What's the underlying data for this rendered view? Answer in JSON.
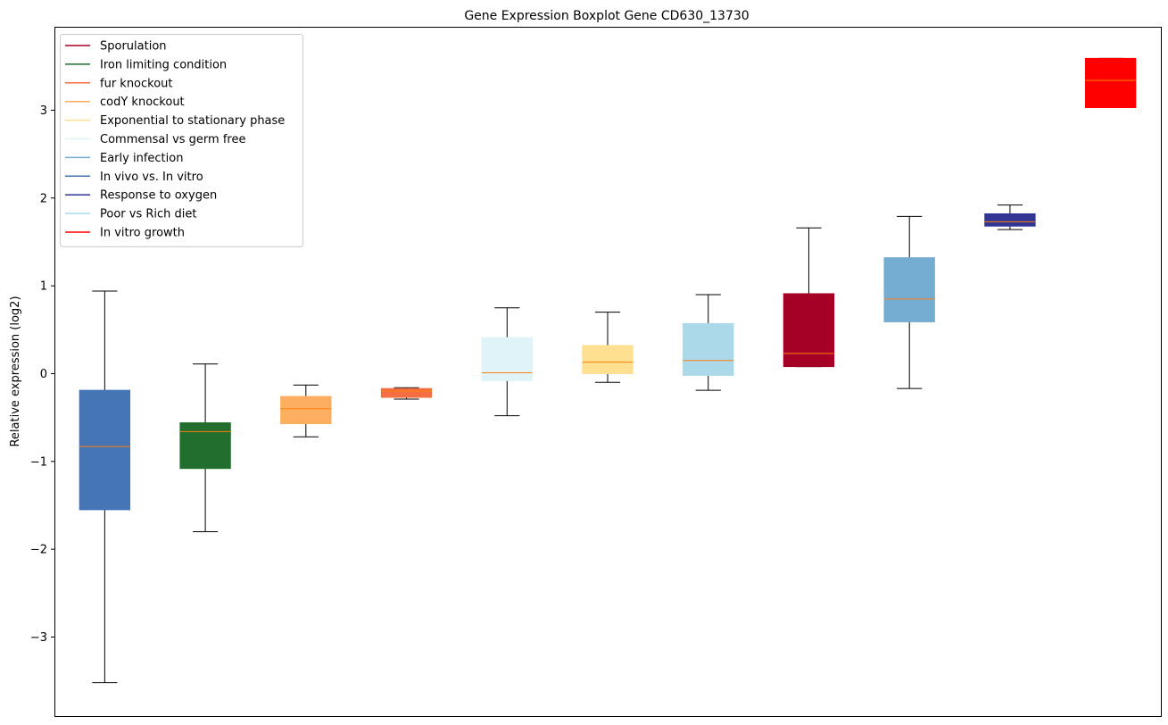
{
  "chart_data": {
    "type": "box",
    "title": "Gene Expression Boxplot Gene CD630_13730",
    "xlabel": "",
    "ylabel": "Relative expression (log2)",
    "ylim": [
      -3.9,
      3.95
    ],
    "yticks": [
      -3,
      -2,
      -1,
      0,
      1,
      2,
      3
    ],
    "ytick_labels": [
      "−3",
      "−2",
      "−1",
      "0",
      "1",
      "2",
      "3"
    ],
    "grid": false,
    "legend_position": "top-left",
    "legend": [
      {
        "label": "Sporulation",
        "color": "#a50026"
      },
      {
        "label": "Iron limiting condition",
        "color": "#226e2e"
      },
      {
        "label": "fur knockout",
        "color": "#f46d43"
      },
      {
        "label": "codY knockout",
        "color": "#fdae61"
      },
      {
        "label": "Exponential to stationary phase",
        "color": "#fee090"
      },
      {
        "label": "Commensal vs germ free",
        "color": "#e0f3f8"
      },
      {
        "label": "Early infection",
        "color": "#74add1"
      },
      {
        "label": "In vivo vs. In vitro",
        "color": "#4575b4"
      },
      {
        "label": "Response to oxygen",
        "color": "#313695"
      },
      {
        "label": "Poor vs Rich diet",
        "color": "#abd9e9"
      },
      {
        "label": "In vitro growth",
        "color": "#ff0000"
      }
    ],
    "median_color": "#ff7f0e",
    "boxes": [
      {
        "group": "In vivo vs. In vitro",
        "color": "#4575b4",
        "whislo": -3.52,
        "q1": -1.55,
        "med": -0.83,
        "q3": -0.19,
        "whishi": 0.94
      },
      {
        "group": "Iron limiting condition",
        "color": "#226e2e",
        "whislo": -1.8,
        "q1": -1.08,
        "med": -0.66,
        "q3": -0.56,
        "whishi": 0.11
      },
      {
        "group": "codY knockout",
        "color": "#fdae61",
        "whislo": -0.72,
        "q1": -0.57,
        "med": -0.4,
        "q3": -0.26,
        "whishi": -0.13
      },
      {
        "group": "fur knockout",
        "color": "#f46d43",
        "whislo": -0.29,
        "q1": -0.27,
        "med": -0.2,
        "q3": -0.17,
        "whishi": -0.16
      },
      {
        "group": "Commensal vs germ free",
        "color": "#e0f3f8",
        "whislo": -0.48,
        "q1": -0.08,
        "med": 0.01,
        "q3": 0.41,
        "whishi": 0.75
      },
      {
        "group": "Exponential to stationary phase",
        "color": "#fee090",
        "whislo": -0.1,
        "q1": 0.0,
        "med": 0.13,
        "q3": 0.32,
        "whishi": 0.7
      },
      {
        "group": "Poor vs Rich diet",
        "color": "#abd9e9",
        "whislo": -0.19,
        "q1": -0.02,
        "med": 0.15,
        "q3": 0.57,
        "whishi": 0.9
      },
      {
        "group": "Sporulation",
        "color": "#a50026",
        "whislo": 0.08,
        "q1": 0.08,
        "med": 0.23,
        "q3": 0.91,
        "whishi": 1.66
      },
      {
        "group": "Early infection",
        "color": "#74add1",
        "whislo": -0.17,
        "q1": 0.59,
        "med": 0.85,
        "q3": 1.32,
        "whishi": 1.79
      },
      {
        "group": "Response to oxygen",
        "color": "#313695",
        "whislo": 1.64,
        "q1": 1.68,
        "med": 1.73,
        "q3": 1.82,
        "whishi": 1.92
      },
      {
        "group": "In vitro growth",
        "color": "#ff0000",
        "whislo": 3.03,
        "q1": 3.03,
        "med": 3.34,
        "q3": 3.59,
        "whishi": 3.59
      }
    ]
  }
}
